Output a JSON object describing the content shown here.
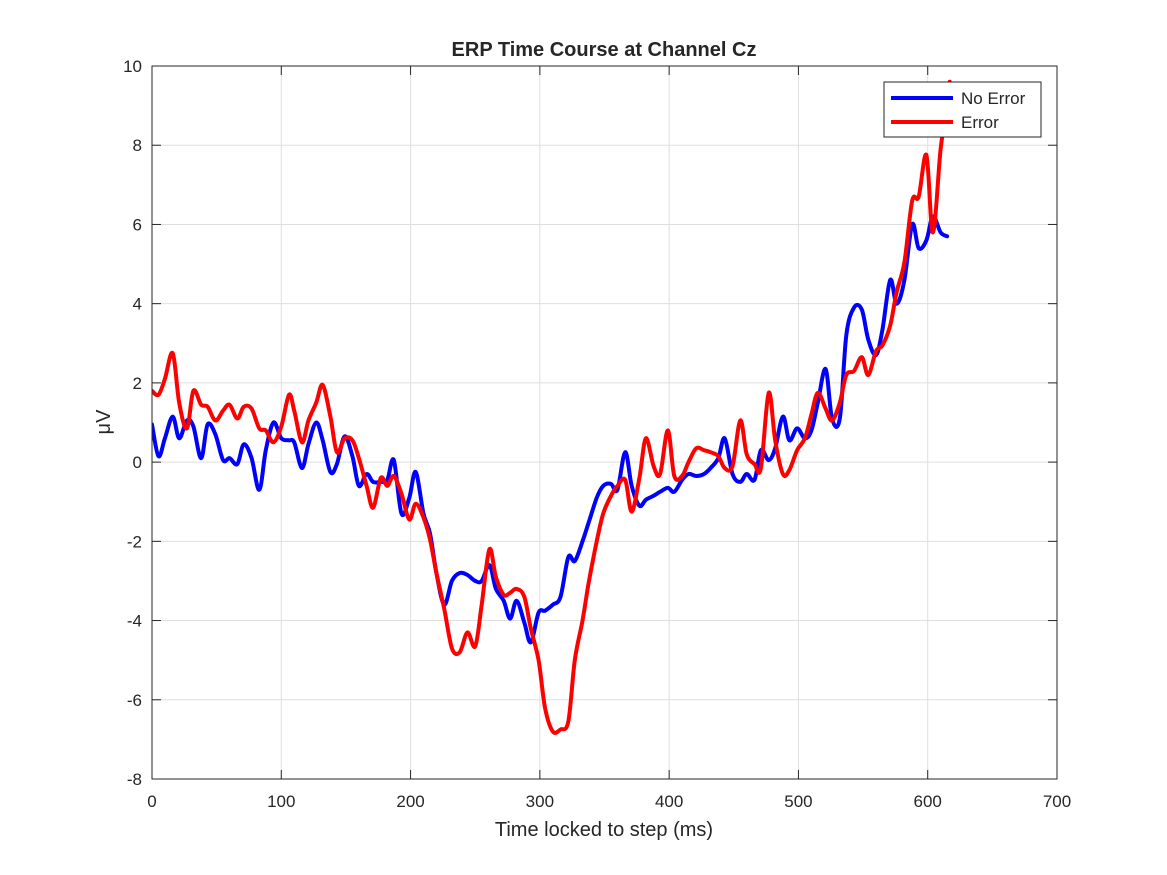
{
  "chart_data": {
    "type": "line",
    "title": "ERP Time Course at Channel Cz",
    "xlabel": "Time locked to step (ms)",
    "ylabel": "μV",
    "xlim": [
      0,
      700
    ],
    "ylim": [
      -8,
      10
    ],
    "xticks": [
      0,
      100,
      200,
      300,
      400,
      500,
      600,
      700
    ],
    "yticks": [
      -8,
      -6,
      -4,
      -2,
      0,
      2,
      4,
      6,
      8,
      10
    ],
    "xtick_labels": [
      "0",
      "100",
      "200",
      "300",
      "400",
      "500",
      "600",
      "700"
    ],
    "ytick_labels": [
      "-8",
      "-6",
      "-4",
      "-2",
      "0",
      "2",
      "4",
      "6",
      "8",
      "10"
    ],
    "grid": true,
    "legend_position": "top-right",
    "series": [
      {
        "name": "No Error",
        "color": "#0000ff",
        "points": [
          [
            0,
            0.95
          ],
          [
            5,
            0.15
          ],
          [
            10,
            0.6
          ],
          [
            16,
            1.15
          ],
          [
            21,
            0.6
          ],
          [
            27,
            1.05
          ],
          [
            32,
            0.9
          ],
          [
            38,
            0.1
          ],
          [
            43,
            0.95
          ],
          [
            49,
            0.7
          ],
          [
            55,
            0.05
          ],
          [
            60,
            0.1
          ],
          [
            66,
            -0.05
          ],
          [
            71,
            0.45
          ],
          [
            77,
            0.1
          ],
          [
            83,
            -0.7
          ],
          [
            88,
            0.3
          ],
          [
            94,
            1.0
          ],
          [
            100,
            0.6
          ],
          [
            106,
            0.55
          ],
          [
            110,
            0.5
          ],
          [
            116,
            -0.15
          ],
          [
            121,
            0.45
          ],
          [
            127,
            1.0
          ],
          [
            132,
            0.55
          ],
          [
            138,
            -0.25
          ],
          [
            143,
            -0.05
          ],
          [
            149,
            0.65
          ],
          [
            155,
            0.15
          ],
          [
            160,
            -0.6
          ],
          [
            166,
            -0.3
          ],
          [
            171,
            -0.5
          ],
          [
            177,
            -0.5
          ],
          [
            182,
            -0.45
          ],
          [
            187,
            0.05
          ],
          [
            193,
            -1.3
          ],
          [
            199,
            -0.9
          ],
          [
            204,
            -0.25
          ],
          [
            210,
            -1.3
          ],
          [
            215,
            -1.8
          ],
          [
            220,
            -2.8
          ],
          [
            226,
            -3.6
          ],
          [
            232,
            -3.0
          ],
          [
            238,
            -2.8
          ],
          [
            244,
            -2.85
          ],
          [
            250,
            -3.0
          ],
          [
            255,
            -3.0
          ],
          [
            261,
            -2.6
          ],
          [
            266,
            -3.2
          ],
          [
            272,
            -3.5
          ],
          [
            277,
            -3.95
          ],
          [
            282,
            -3.5
          ],
          [
            288,
            -4.05
          ],
          [
            293,
            -4.55
          ],
          [
            299,
            -3.8
          ],
          [
            304,
            -3.75
          ],
          [
            310,
            -3.6
          ],
          [
            316,
            -3.4
          ],
          [
            322,
            -2.4
          ],
          [
            327,
            -2.5
          ],
          [
            333,
            -2.0
          ],
          [
            338,
            -1.5
          ],
          [
            344,
            -0.9
          ],
          [
            349,
            -0.6
          ],
          [
            355,
            -0.55
          ],
          [
            360,
            -0.7
          ],
          [
            366,
            0.25
          ],
          [
            371,
            -0.6
          ],
          [
            377,
            -1.1
          ],
          [
            382,
            -0.95
          ],
          [
            388,
            -0.85
          ],
          [
            393,
            -0.75
          ],
          [
            399,
            -0.65
          ],
          [
            404,
            -0.75
          ],
          [
            410,
            -0.45
          ],
          [
            415,
            -0.3
          ],
          [
            421,
            -0.35
          ],
          [
            427,
            -0.3
          ],
          [
            432,
            -0.15
          ],
          [
            438,
            0.1
          ],
          [
            443,
            0.6
          ],
          [
            449,
            -0.3
          ],
          [
            455,
            -0.5
          ],
          [
            460,
            -0.3
          ],
          [
            466,
            -0.45
          ],
          [
            471,
            0.3
          ],
          [
            477,
            0.05
          ],
          [
            482,
            0.35
          ],
          [
            488,
            1.15
          ],
          [
            493,
            0.55
          ],
          [
            499,
            0.85
          ],
          [
            505,
            0.6
          ],
          [
            510,
            0.8
          ],
          [
            515,
            1.5
          ],
          [
            521,
            2.35
          ],
          [
            526,
            1.1
          ],
          [
            532,
            1.1
          ],
          [
            537,
            3.2
          ],
          [
            543,
            3.9
          ],
          [
            549,
            3.85
          ],
          [
            554,
            3.1
          ],
          [
            560,
            2.7
          ],
          [
            565,
            3.35
          ],
          [
            571,
            4.6
          ],
          [
            576,
            4.0
          ],
          [
            582,
            4.6
          ],
          [
            588,
            6.0
          ],
          [
            593,
            5.4
          ],
          [
            599,
            5.6
          ],
          [
            604,
            6.2
          ],
          [
            610,
            5.8
          ],
          [
            615,
            5.7
          ]
        ]
      },
      {
        "name": "Error",
        "color": "#ff0000",
        "points": [
          [
            0,
            1.8
          ],
          [
            5,
            1.7
          ],
          [
            10,
            2.1
          ],
          [
            16,
            2.75
          ],
          [
            21,
            1.5
          ],
          [
            27,
            0.85
          ],
          [
            32,
            1.8
          ],
          [
            38,
            1.45
          ],
          [
            43,
            1.4
          ],
          [
            49,
            1.05
          ],
          [
            55,
            1.3
          ],
          [
            60,
            1.45
          ],
          [
            66,
            1.1
          ],
          [
            71,
            1.4
          ],
          [
            77,
            1.35
          ],
          [
            83,
            0.85
          ],
          [
            88,
            0.8
          ],
          [
            94,
            0.5
          ],
          [
            100,
            0.9
          ],
          [
            106,
            1.7
          ],
          [
            110,
            1.3
          ],
          [
            116,
            0.5
          ],
          [
            121,
            1.05
          ],
          [
            127,
            1.5
          ],
          [
            132,
            1.95
          ],
          [
            138,
            1.15
          ],
          [
            143,
            0.25
          ],
          [
            149,
            0.6
          ],
          [
            155,
            0.55
          ],
          [
            160,
            0.1
          ],
          [
            166,
            -0.6
          ],
          [
            171,
            -1.15
          ],
          [
            177,
            -0.4
          ],
          [
            182,
            -0.6
          ],
          [
            187,
            -0.35
          ],
          [
            193,
            -0.8
          ],
          [
            199,
            -1.45
          ],
          [
            204,
            -1.05
          ],
          [
            210,
            -1.4
          ],
          [
            215,
            -1.95
          ],
          [
            220,
            -2.8
          ],
          [
            226,
            -3.7
          ],
          [
            232,
            -4.7
          ],
          [
            238,
            -4.8
          ],
          [
            244,
            -4.3
          ],
          [
            250,
            -4.65
          ],
          [
            255,
            -3.6
          ],
          [
            261,
            -2.2
          ],
          [
            266,
            -2.9
          ],
          [
            272,
            -3.35
          ],
          [
            277,
            -3.3
          ],
          [
            282,
            -3.2
          ],
          [
            288,
            -3.4
          ],
          [
            293,
            -4.2
          ],
          [
            299,
            -5.0
          ],
          [
            304,
            -6.2
          ],
          [
            310,
            -6.8
          ],
          [
            316,
            -6.75
          ],
          [
            322,
            -6.55
          ],
          [
            327,
            -5.0
          ],
          [
            333,
            -4.0
          ],
          [
            338,
            -3.0
          ],
          [
            344,
            -2.0
          ],
          [
            349,
            -1.3
          ],
          [
            355,
            -0.85
          ],
          [
            360,
            -0.6
          ],
          [
            366,
            -0.45
          ],
          [
            371,
            -1.25
          ],
          [
            377,
            -0.4
          ],
          [
            382,
            0.6
          ],
          [
            388,
            -0.1
          ],
          [
            393,
            -0.3
          ],
          [
            399,
            0.8
          ],
          [
            404,
            -0.35
          ],
          [
            410,
            -0.35
          ],
          [
            415,
            0.0
          ],
          [
            421,
            0.35
          ],
          [
            427,
            0.3
          ],
          [
            432,
            0.25
          ],
          [
            438,
            0.15
          ],
          [
            443,
            -0.15
          ],
          [
            449,
            -0.1
          ],
          [
            455,
            1.05
          ],
          [
            460,
            0.2
          ],
          [
            466,
            -0.05
          ],
          [
            471,
            -0.15
          ],
          [
            477,
            1.75
          ],
          [
            482,
            0.55
          ],
          [
            488,
            -0.3
          ],
          [
            493,
            -0.2
          ],
          [
            499,
            0.3
          ],
          [
            505,
            0.6
          ],
          [
            510,
            1.2
          ],
          [
            515,
            1.75
          ],
          [
            521,
            1.35
          ],
          [
            526,
            1.05
          ],
          [
            532,
            1.5
          ],
          [
            537,
            2.2
          ],
          [
            543,
            2.3
          ],
          [
            549,
            2.65
          ],
          [
            554,
            2.2
          ],
          [
            560,
            2.8
          ],
          [
            565,
            2.95
          ],
          [
            571,
            3.45
          ],
          [
            576,
            4.3
          ],
          [
            582,
            5.05
          ],
          [
            588,
            6.6
          ],
          [
            593,
            6.7
          ],
          [
            599,
            7.75
          ],
          [
            604,
            5.8
          ],
          [
            610,
            7.9
          ],
          [
            615,
            9.0
          ],
          [
            617,
            9.6
          ]
        ]
      }
    ]
  }
}
